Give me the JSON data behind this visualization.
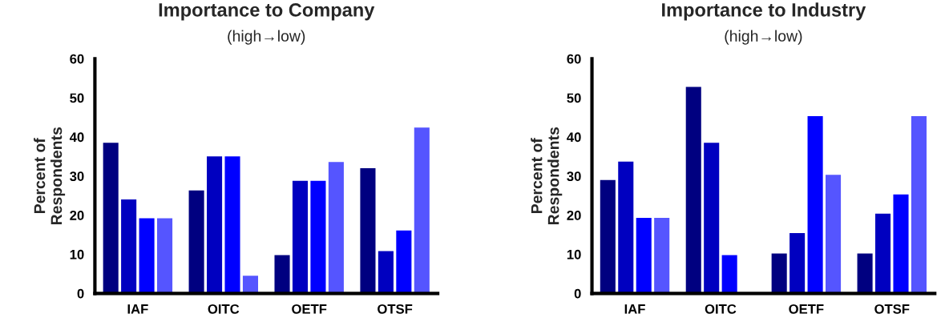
{
  "chart_data": [
    {
      "type": "bar",
      "title": "Importance to Company",
      "subtitle": "(high→low)",
      "ylabel": "Percent of\nRespondents",
      "categories": [
        "IAF",
        "OITC",
        "OETF",
        "OTSF"
      ],
      "ylim": [
        0,
        60
      ],
      "yticks": [
        0,
        10,
        20,
        30,
        40,
        50,
        60
      ],
      "grid": false,
      "legend": false,
      "series": [
        {
          "color": "#000080",
          "values": [
            38.5,
            26.3,
            9.8,
            32
          ]
        },
        {
          "color": "#0000c0",
          "values": [
            24,
            35,
            28.8,
            10.8
          ]
        },
        {
          "color": "#0000ff",
          "values": [
            19.2,
            35,
            28.8,
            16.1
          ]
        },
        {
          "color": "#5555ff",
          "values": [
            19.2,
            4.5,
            33.6,
            42.4
          ]
        }
      ]
    },
    {
      "type": "bar",
      "title": "Importance to Industry",
      "subtitle": "(high→low)",
      "ylabel": "Percent of\nRespondents",
      "categories": [
        "IAF",
        "OITC",
        "OETF",
        "OTSF"
      ],
      "ylim": [
        0,
        60
      ],
      "yticks": [
        0,
        10,
        20,
        30,
        40,
        50,
        60
      ],
      "grid": false,
      "legend": false,
      "series": [
        {
          "color": "#000080",
          "values": [
            29,
            52.8,
            10.2,
            10.2
          ]
        },
        {
          "color": "#0000c0",
          "values": [
            33.7,
            38.5,
            15.4,
            20.4
          ]
        },
        {
          "color": "#0000ff",
          "values": [
            19.3,
            9.8,
            45.3,
            25.3
          ]
        },
        {
          "color": "#5555ff",
          "values": [
            19.3,
            null,
            30.3,
            45.3
          ]
        }
      ]
    }
  ]
}
